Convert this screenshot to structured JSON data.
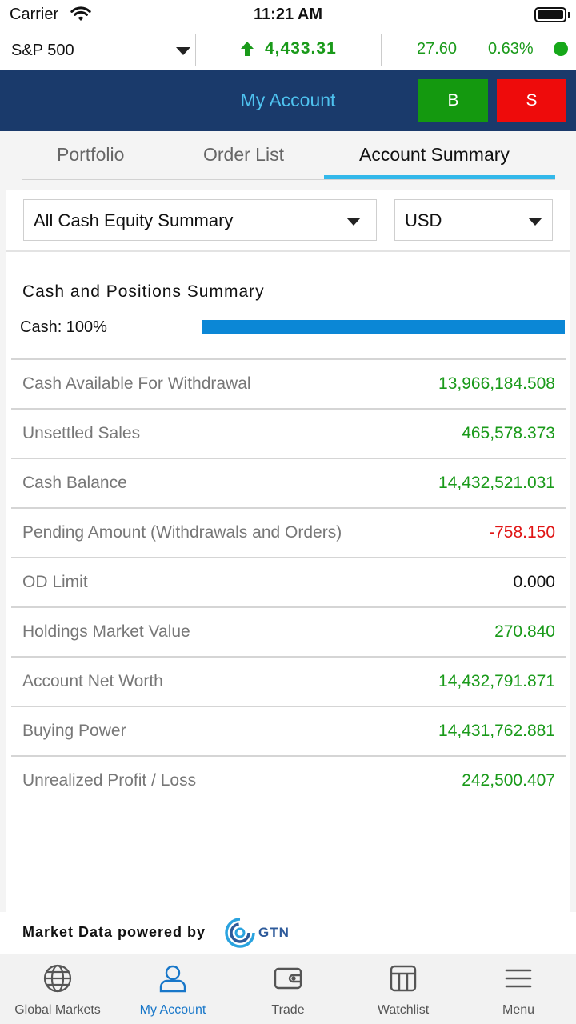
{
  "status_bar": {
    "carrier": "Carrier",
    "time": "11:21 AM"
  },
  "ticker": {
    "index_name": "S&P 500",
    "value": "4,433.31",
    "change": "27.60",
    "change_pct": "0.63%",
    "trend": "up",
    "up_color": "#1a9a1a"
  },
  "header": {
    "title": "My Account",
    "buy_label": "B",
    "sell_label": "S"
  },
  "tabs": [
    {
      "label": "Portfolio",
      "active": false
    },
    {
      "label": "Order List",
      "active": false
    },
    {
      "label": "Account Summary",
      "active": true
    }
  ],
  "filters": {
    "summary_type": "All Cash Equity Summary",
    "currency": "USD"
  },
  "summary": {
    "title": "Cash and Positions Summary",
    "cash_label": "Cash: 100%",
    "cash_fraction": 1.0,
    "rows": [
      {
        "label": "Cash Available For Withdrawal",
        "value": "13,966,184.508",
        "tone": "positive"
      },
      {
        "label": "Unsettled Sales",
        "value": "465,578.373",
        "tone": "positive"
      },
      {
        "label": "Cash Balance",
        "value": "14,432,521.031",
        "tone": "positive"
      },
      {
        "label": "Pending Amount (Withdrawals and Orders)",
        "value": "-758.150",
        "tone": "negative"
      },
      {
        "label": "OD Limit",
        "value": "0.000",
        "tone": "neutral"
      },
      {
        "label": "Holdings Market Value",
        "value": "270.840",
        "tone": "positive"
      },
      {
        "label": "Account Net Worth",
        "value": "14,432,791.871",
        "tone": "positive"
      },
      {
        "label": "Buying Power",
        "value": "14,431,762.881",
        "tone": "positive"
      },
      {
        "label": "Unrealized Profit / Loss",
        "value": "242,500.407",
        "tone": "positive"
      }
    ]
  },
  "footer": {
    "powered_by": "Market Data powered by",
    "brand": "GTN"
  },
  "bottom_nav": [
    {
      "label": "Global Markets",
      "icon": "globe-icon",
      "active": false
    },
    {
      "label": "My Account",
      "icon": "person-icon",
      "active": true
    },
    {
      "label": "Trade",
      "icon": "wallet-icon",
      "active": false
    },
    {
      "label": "Watchlist",
      "icon": "watchlist-icon",
      "active": false
    },
    {
      "label": "Menu",
      "icon": "menu-icon",
      "active": false
    }
  ],
  "colors": {
    "positive": "#1a9a1a",
    "negative": "#e01515",
    "neutral": "#111111",
    "header_bg": "#1a3a6b",
    "accent": "#33b8ea",
    "nav_active": "#1877c9"
  }
}
